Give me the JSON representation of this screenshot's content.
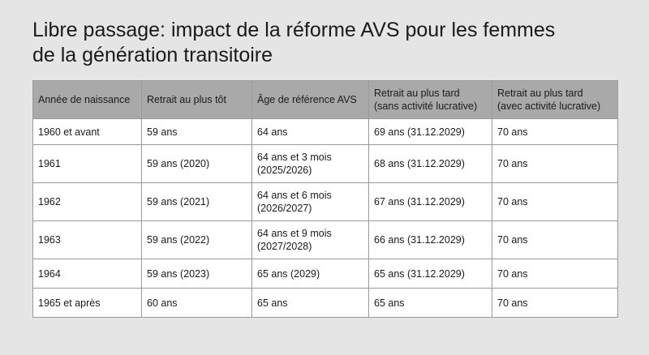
{
  "title": "Libre passage: impact de la réforme AVS pour les femmes\nde la génération transitoire",
  "table": {
    "headers": [
      "Année de naissance",
      "Retrait au plus tôt",
      "Âge de référence AVS",
      "Retrait au plus tard\n(sans activité lucrative)",
      "Retrait au plus tard\n(avec activité lucrative)"
    ],
    "rows": [
      [
        "1960 et avant",
        "59 ans",
        "64 ans",
        "69 ans (31.12.2029)",
        "70 ans"
      ],
      [
        "1961",
        "59 ans (2020)",
        "64 ans et 3 mois\n(2025/2026)",
        "68 ans (31.12.2029)",
        "70 ans"
      ],
      [
        "1962",
        "59 ans (2021)",
        "64 ans et 6 mois\n(2026/2027)",
        "67 ans (31.12.2029)",
        "70 ans"
      ],
      [
        "1963",
        "59 ans (2022)",
        "64 ans et 9 mois\n(2027/2028)",
        "66 ans (31.12.2029)",
        "70 ans"
      ],
      [
        "1964",
        "59 ans (2023)",
        "65 ans (2029)",
        "65 ans (31.12.2029)",
        "70 ans"
      ],
      [
        "1965 et après",
        "60 ans",
        "65 ans",
        "65 ans",
        "70 ans"
      ]
    ]
  }
}
